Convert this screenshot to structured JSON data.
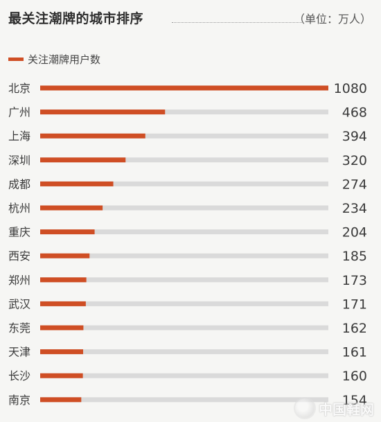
{
  "header": {
    "title": "最关注潮牌的城市排序",
    "unit": "（单位：万人）"
  },
  "legend": {
    "label": "关注潮牌用户数"
  },
  "colors": {
    "bar": "#cf4e24",
    "track": "#dadada",
    "label": "#3a3a3a"
  },
  "watermark": {
    "text": "中国鞋网"
  },
  "chart_data": {
    "type": "bar",
    "orientation": "horizontal",
    "title": "最关注潮牌的城市排序",
    "unit": "（单位：万人）",
    "categories": [
      "北京",
      "广州",
      "上海",
      "深圳",
      "成都",
      "杭州",
      "重庆",
      "西安",
      "郑州",
      "武汉",
      "东莞",
      "天津",
      "长沙",
      "南京"
    ],
    "series": [
      {
        "name": "关注潮牌用户数",
        "values": [
          1080,
          468,
          394,
          320,
          274,
          234,
          204,
          185,
          173,
          171,
          162,
          161,
          160,
          154
        ]
      }
    ],
    "xlim": [
      0,
      1080
    ],
    "grid": false,
    "legend_position": "top-left"
  }
}
